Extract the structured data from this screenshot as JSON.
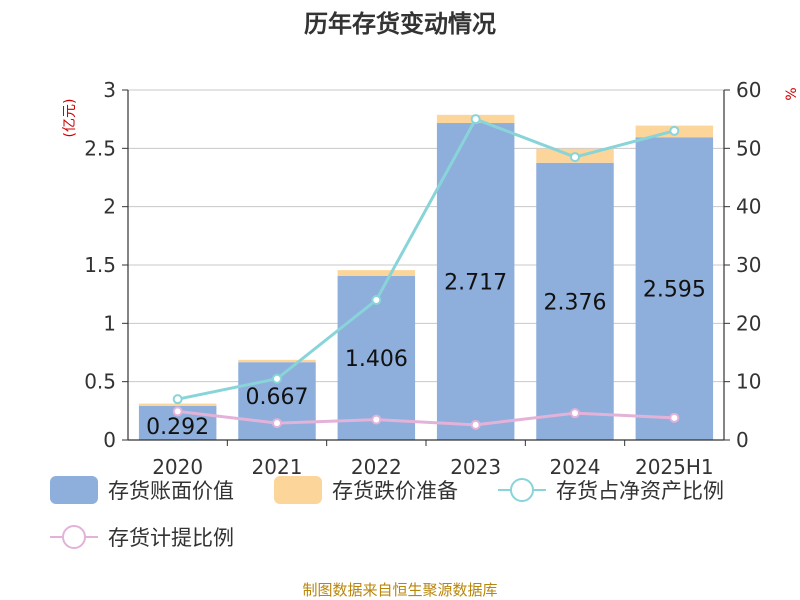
{
  "chart_data": {
    "type": "bar",
    "title": "历年存货变动情况",
    "categories": [
      "2020",
      "2021",
      "2022",
      "2023",
      "2024",
      "2025H1"
    ],
    "left_axis": {
      "unit": "(亿元)",
      "ylim": [
        0,
        3
      ],
      "ticks": [
        "0",
        "0.5",
        "1",
        "1.5",
        "2",
        "2.5",
        "3"
      ]
    },
    "right_axis": {
      "unit": "%",
      "ylim": [
        0,
        60
      ],
      "ticks": [
        "0",
        "10",
        "20",
        "30",
        "40",
        "50",
        "60"
      ]
    },
    "grid": true,
    "stacked": true,
    "series": [
      {
        "name": "存货账面价值",
        "kind": "bar",
        "axis": "left",
        "color": "#8eaedc",
        "values": [
          0.292,
          0.667,
          1.406,
          2.717,
          2.376,
          2.595
        ],
        "labels": [
          "0.292",
          "0.667",
          "1.406",
          "2.717",
          "2.376",
          "2.595"
        ]
      },
      {
        "name": "存货跌价准备",
        "kind": "bar",
        "axis": "left",
        "color": "#fcd59a",
        "values": [
          0.02,
          0.02,
          0.05,
          0.07,
          0.12,
          0.1
        ]
      },
      {
        "name": "存货占净资产比例",
        "kind": "line",
        "axis": "right",
        "color": "#88d4d8",
        "values": [
          7,
          10.5,
          24,
          55,
          48.5,
          53
        ]
      },
      {
        "name": "存货计提比例",
        "kind": "line",
        "axis": "right",
        "color": "#e3b2d8",
        "values": [
          4.9,
          2.9,
          3.5,
          2.6,
          4.6,
          3.8
        ]
      }
    ],
    "legend_position": "bottom",
    "source": "制图数据来自恒生聚源数据库"
  }
}
